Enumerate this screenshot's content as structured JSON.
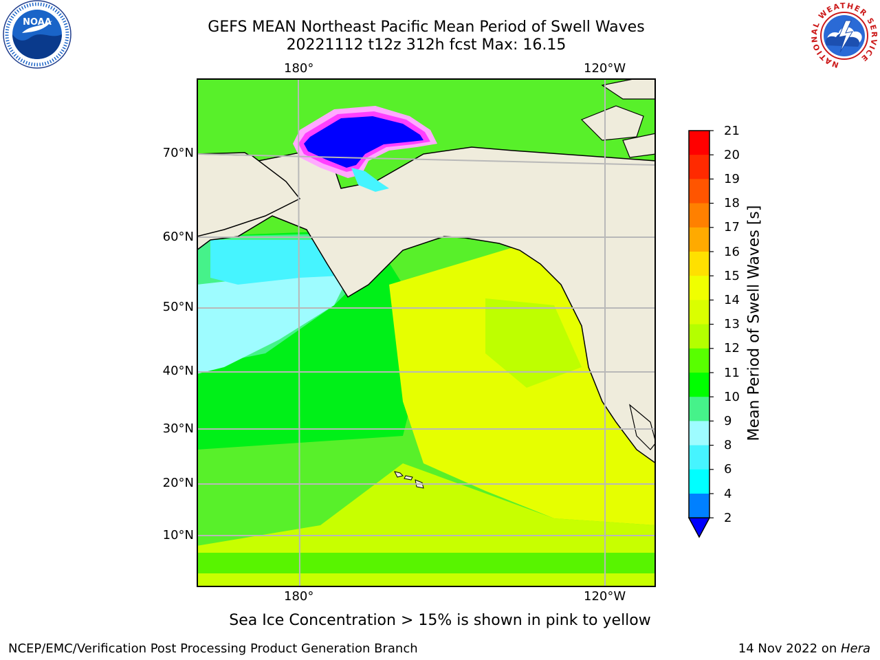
{
  "title": {
    "line1": "GEFS MEAN Northeast Pacific Mean Period of Swell Waves",
    "line2": "20221112 t12z 312h fcst   Max: 16.15"
  },
  "map": {
    "lon_labels_top": [
      "180°",
      "120°W"
    ],
    "lon_labels_bottom": [
      "180°",
      "120°W"
    ],
    "lat_labels": [
      "70°N",
      "60°N",
      "50°N",
      "40°N",
      "30°N",
      "20°N",
      "10°N"
    ],
    "land_color": "#efecdc",
    "ocean_dominant_colors": {
      "cyan_light": "#9efcff",
      "cyan": "#46f4ff",
      "green_light": "#46f28a",
      "green": "#00f018",
      "yellow_green": "#b4ff00",
      "yellow": "#f0ff00"
    },
    "ice_color": "#0000ff",
    "ice_edge_colors": [
      "#ff40ff",
      "#ffaaff",
      "#ffd080"
    ]
  },
  "colorbar": {
    "label": "Mean Period of Swell Waves [s]",
    "ticks": [
      "21",
      "20",
      "19",
      "18",
      "17",
      "16",
      "15",
      "14",
      "13",
      "12",
      "11",
      "10",
      "9",
      "8",
      "6",
      "4",
      "2"
    ],
    "colors_top_to_bottom": [
      "#ff0000",
      "#ff2a00",
      "#ff5500",
      "#ff8000",
      "#ffaa00",
      "#ffe000",
      "#f0ff00",
      "#daff00",
      "#b4ff00",
      "#58ff00",
      "#00ff00",
      "#46f28a",
      "#9efcff",
      "#46f4ff",
      "#00ffff",
      "#0080ff"
    ],
    "extend_color": "#0000ff"
  },
  "footnote": "Sea Ice Concentration > 15% is shown in pink to yellow",
  "credit": "NCEP/EMC/Verification Post Processing Product Generation Branch",
  "date_stamp": {
    "text": "14 Nov 2022 on ",
    "host": "Hera"
  },
  "logos": {
    "noaa_text": "NOAA",
    "nws_ring_text": "NATIONAL WEATHER SERVICE"
  }
}
